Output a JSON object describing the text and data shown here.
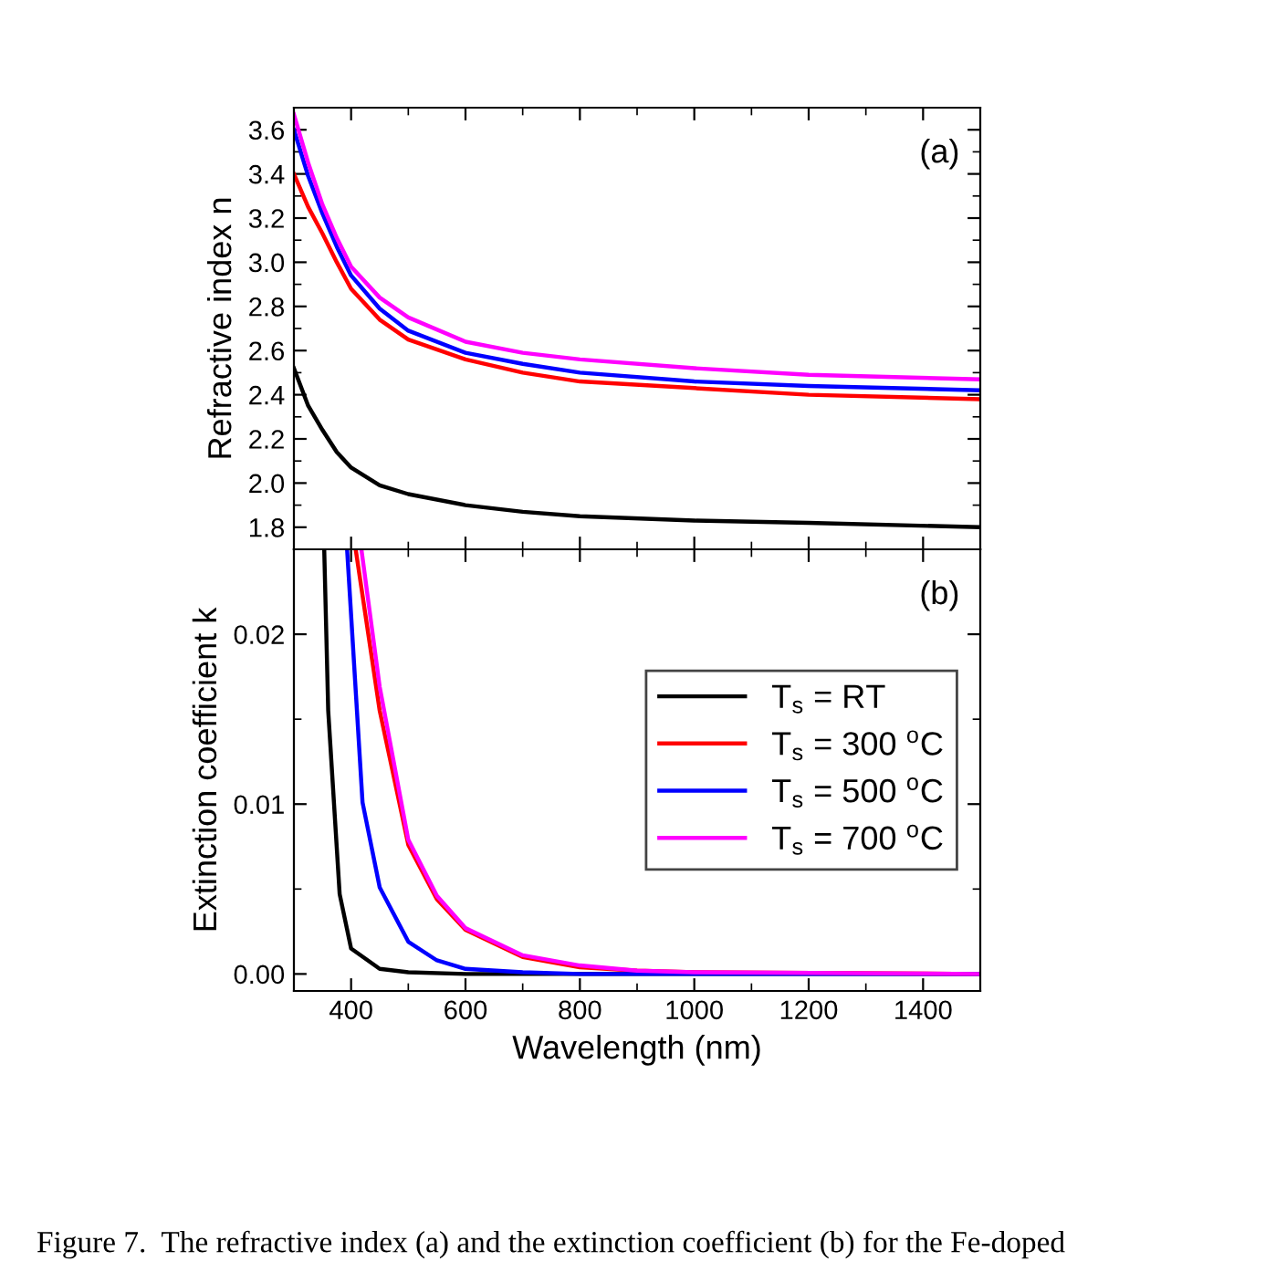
{
  "chart_data": [
    {
      "type": "line",
      "ylabel": "Refractive index n",
      "annotations": [
        "(a)"
      ],
      "x": [
        300,
        325,
        350,
        375,
        400,
        450,
        500,
        600,
        700,
        800,
        1000,
        1200,
        1500
      ],
      "series": [
        {
          "color": "#000000",
          "values": [
            2.52,
            2.35,
            2.24,
            2.14,
            2.07,
            1.99,
            1.95,
            1.9,
            1.87,
            1.85,
            1.83,
            1.82,
            1.8
          ]
        },
        {
          "color": "#ff0000",
          "values": [
            3.4,
            3.25,
            3.13,
            3.0,
            2.88,
            2.74,
            2.65,
            2.56,
            2.5,
            2.46,
            2.43,
            2.4,
            2.38
          ]
        },
        {
          "color": "#0000ff",
          "values": [
            3.6,
            3.39,
            3.22,
            3.07,
            2.94,
            2.79,
            2.69,
            2.59,
            2.54,
            2.5,
            2.46,
            2.44,
            2.42
          ]
        },
        {
          "color": "#ff00ff",
          "values": [
            3.67,
            3.45,
            3.26,
            3.11,
            2.98,
            2.84,
            2.75,
            2.64,
            2.59,
            2.56,
            2.52,
            2.49,
            2.47
          ]
        }
      ],
      "xlim": [
        300,
        1500
      ],
      "xticks": [
        400,
        600,
        800,
        1000,
        1200,
        1400
      ],
      "ylim": [
        1.7,
        3.7
      ],
      "yticks": [
        1.8,
        {
          "value": 2,
          "label": "2.0"
        },
        2.2,
        2.4,
        2.6,
        2.8,
        {
          "value": 3,
          "label": "3.0"
        },
        3.2,
        3.4,
        3.6
      ],
      "tick_labels": "y",
      "grid": false,
      "legend": false,
      "marker": "none",
      "line_style": "solid"
    },
    {
      "type": "line",
      "xlabel": "Wavelength (nm)",
      "ylabel": "Extinction coefficient k",
      "annotations": [
        "(b)",
        "Figure 7.  The refractive index (a) and the extinction coefficient (b) for the Fe-doped"
      ],
      "series": [
        {
          "name": "T$_{s}$ = RT",
          "color": "#000000",
          "x": [
            353,
            360,
            380,
            400,
            450,
            500,
            600,
            1500
          ],
          "values": [
            0.025,
            0.0155,
            0.0047,
            0.0015,
            0.0003,
            0.0001,
            0.0,
            0.0
          ]
        },
        {
          "name": "T$_{s}$ = 300 $^{o}$C",
          "color": "#ff0000",
          "x": [
            408,
            450,
            500,
            550,
            600,
            700,
            800,
            900,
            1000,
            1500
          ],
          "values": [
            0.025,
            0.0155,
            0.0076,
            0.0044,
            0.0026,
            0.001,
            0.0004,
            0.0002,
            0.0001,
            0.0
          ]
        },
        {
          "name": "T$_{s}$ = 500 $^{o}$C",
          "color": "#0000ff",
          "x": [
            393,
            420,
            450,
            500,
            550,
            600,
            700,
            800,
            1500
          ],
          "values": [
            0.025,
            0.0101,
            0.0051,
            0.0019,
            0.0008,
            0.0003,
            0.0001,
            0.0,
            0.0
          ]
        },
        {
          "name": "T$_{s}$ = 700 $^{o}$C",
          "color": "#ff00ff",
          "x": [
            418,
            450,
            500,
            550,
            600,
            700,
            800,
            900,
            1000,
            1500
          ],
          "values": [
            0.025,
            0.0169,
            0.0079,
            0.0046,
            0.0027,
            0.0011,
            0.0005,
            0.0002,
            0.0001,
            0.0
          ]
        }
      ],
      "xlim": [
        300,
        1500
      ],
      "xticks": [
        400,
        600,
        800,
        1000,
        1200,
        1400
      ],
      "ylim": [
        -0.001,
        0.025
      ],
      "yticks": [
        {
          "value": 0,
          "label": "0.00"
        },
        0.01,
        0.02
      ],
      "grid": false,
      "legend": "right",
      "marker": "none",
      "line_style": "solid"
    }
  ]
}
